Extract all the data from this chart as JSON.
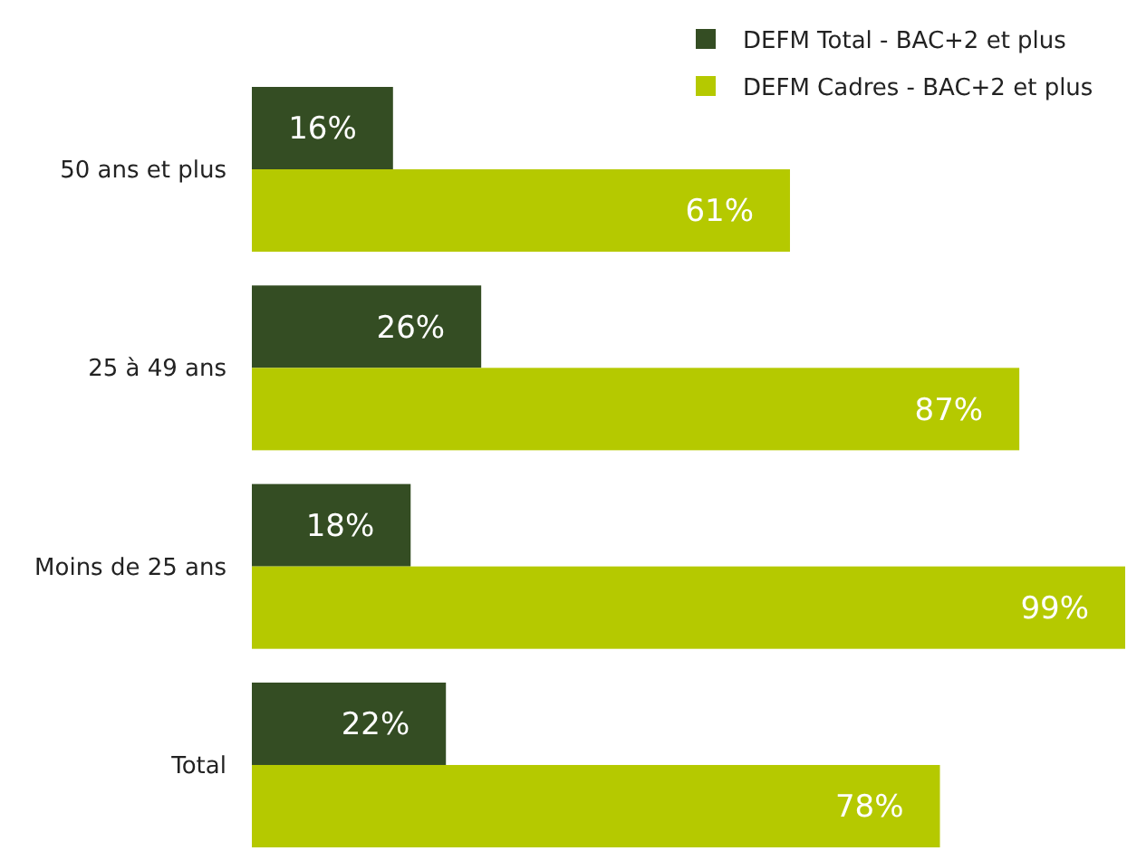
{
  "chart_data": {
    "type": "bar",
    "orientation": "horizontal",
    "categories": [
      "50 ans et plus",
      "25 à 49 ans",
      "Moins de 25 ans",
      "Total"
    ],
    "series": [
      {
        "name": "DEFM Total - BAC+2 et plus",
        "color": "#344d23",
        "values": [
          16,
          26,
          18,
          22
        ],
        "value_labels": [
          "16%",
          "26%",
          "18%",
          "22%"
        ]
      },
      {
        "name": "DEFM Cadres - BAC+2 et plus",
        "color": "#b5c900",
        "values": [
          61,
          87,
          99,
          78
        ],
        "value_labels": [
          "61%",
          "87%",
          "99%",
          "78%"
        ]
      }
    ],
    "tick_labels": "y",
    "legend": "top right"
  }
}
